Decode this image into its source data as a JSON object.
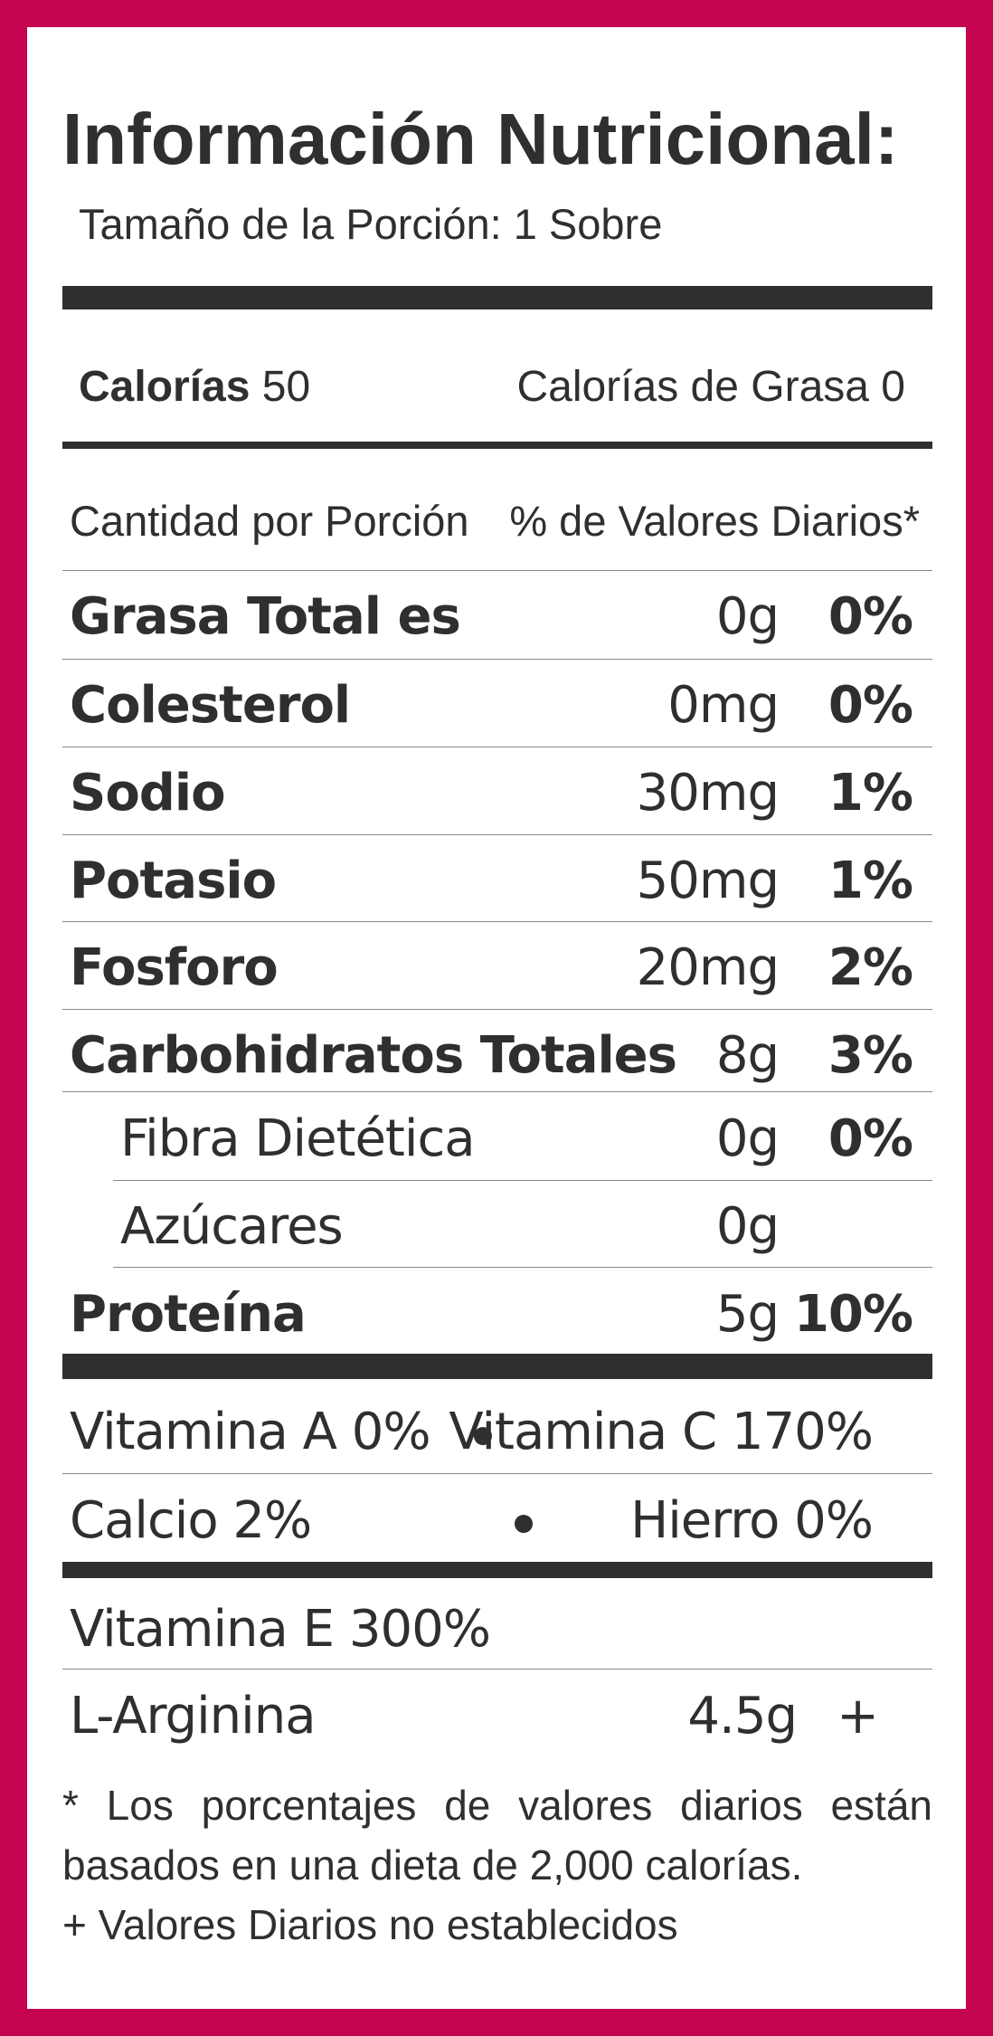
{
  "title": "Información Nutricional:",
  "serving": "Tamaño de la Porción: 1 Sobre",
  "calories": {
    "label": "Calorías",
    "value": "50",
    "fat_label": "Calorías de Grasa 0"
  },
  "header": {
    "amount_label": "Cantidad por Porción",
    "dv_label": "% de Valores Diarios*"
  },
  "nutrients": [
    {
      "name": "Grasa Total es",
      "amount": "0g",
      "dv": "0%"
    },
    {
      "name": "Colesterol",
      "amount": "0mg",
      "dv": "0%"
    },
    {
      "name": "Sodio",
      "amount": "30mg",
      "dv": "1%"
    },
    {
      "name": "Potasio",
      "amount": "50mg",
      "dv": "1%"
    },
    {
      "name": "Fosforo",
      "amount": "20mg",
      "dv": "2%"
    },
    {
      "name": "Carbohidratos Totales",
      "amount": "8g",
      "dv": "3%"
    },
    {
      "name": "Fibra Dietética",
      "amount": "0g",
      "dv": "0%"
    },
    {
      "name": "Azúcares",
      "amount": "0g",
      "dv": ""
    },
    {
      "name": "Proteína",
      "amount": "5g",
      "dv": "10%"
    }
  ],
  "vitamins": {
    "vit_a": "Vitamina A 0%",
    "vit_c": "Vitamina C 170%",
    "calcio": "Calcio 2%",
    "hierro": "Hierro 0%",
    "vit_e": "Vitamina E 300%"
  },
  "arginine": {
    "name": "L-Arginina",
    "amount": "4.5g",
    "dv": "+"
  },
  "footnotes": {
    "line1": "* Los porcentajes de valores diarios están basados en una dieta de 2,000 calorías.",
    "line2": "+ Valores Diarios no establecidos"
  },
  "colors": {
    "border": "#c4044e",
    "text": "#2f2f2f"
  }
}
